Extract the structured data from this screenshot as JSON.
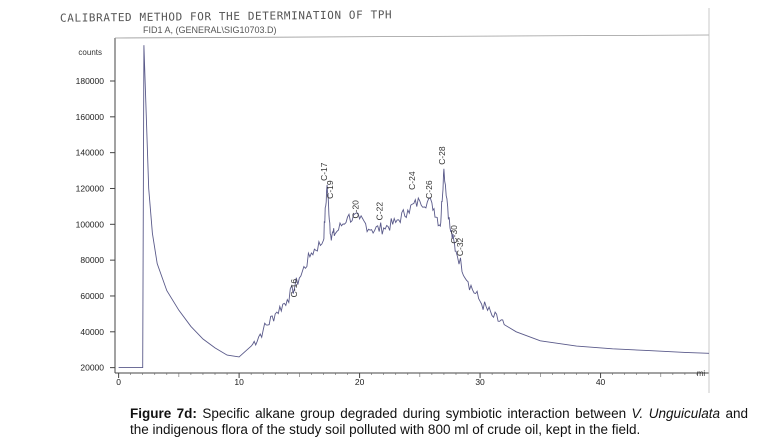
{
  "header": {
    "title": "CALIBRATED METHOD FOR THE DETERMINATION OF TPH",
    "signal_id": "FID1 A, (GENERAL\\SIG10703.D)"
  },
  "chart_data": {
    "type": "line",
    "ylabel": "counts",
    "xlabel": "mi",
    "xlim": [
      -0.3,
      49
    ],
    "ylim": [
      17000,
      204000
    ],
    "x_ticks": [
      0,
      10,
      20,
      30,
      40
    ],
    "x_tick_labels": [
      "0",
      "10",
      "20",
      "30",
      "40"
    ],
    "y_ticks": [
      20000,
      40000,
      60000,
      80000,
      100000,
      120000,
      140000,
      160000,
      180000
    ],
    "y_tick_labels": [
      "20000",
      "40000",
      "60000",
      "80000",
      "100000",
      "120000",
      "140000",
      "160000",
      "180000"
    ],
    "grid": false,
    "series": [
      {
        "x": [
          0,
          2,
          2.1,
          2.3,
          2.5,
          2.8,
          3.2,
          4,
          5,
          6,
          7,
          8,
          9,
          10,
          11,
          12,
          13,
          14,
          15,
          16,
          17,
          17.3,
          17.6,
          18,
          19,
          20,
          21,
          22,
          23,
          24,
          25,
          26,
          26.7,
          27,
          27.5,
          28,
          29,
          30,
          31,
          32,
          33,
          35,
          38,
          41,
          44,
          47,
          49
        ],
        "y": [
          20000,
          20000,
          200000,
          160000,
          120000,
          95000,
          78000,
          63000,
          52000,
          43000,
          36000,
          31000,
          27000,
          26000,
          32000,
          41000,
          50000,
          58000,
          70000,
          84000,
          91000,
          122000,
          94000,
          95000,
          104000,
          103000,
          97000,
          98000,
          101000,
          108000,
          113000,
          112000,
          99000,
          131000,
          98000,
          85000,
          68000,
          57000,
          49000,
          44000,
          40000,
          35000,
          32000,
          30500,
          29500,
          28500,
          28000
        ]
      }
    ],
    "annotations": [
      {
        "text": "C-16",
        "x": 14.8,
        "y": 57000
      },
      {
        "text": "C-17",
        "x": 17.3,
        "y": 122000
      },
      {
        "text": "C-19",
        "x": 17.8,
        "y": 112000
      },
      {
        "text": "C-20",
        "x": 19.9,
        "y": 101000
      },
      {
        "text": "C-22",
        "x": 21.9,
        "y": 100000
      },
      {
        "text": "C-24",
        "x": 24.6,
        "y": 117000
      },
      {
        "text": "C-26",
        "x": 26.0,
        "y": 112000
      },
      {
        "text": "C-28",
        "x": 27.1,
        "y": 131000
      },
      {
        "text": "C-30",
        "x": 28.1,
        "y": 87000
      },
      {
        "text": "C-32",
        "x": 28.6,
        "y": 80000
      }
    ]
  },
  "caption": {
    "label": "Figure 7d:",
    "text_1": " Specific alkane group degraded during symbiotic interaction between ",
    "species": "V. Unguiculata",
    "text_2": " and the indigenous flora of the study soil polluted with 800 ml of crude oil, kept in the field."
  }
}
